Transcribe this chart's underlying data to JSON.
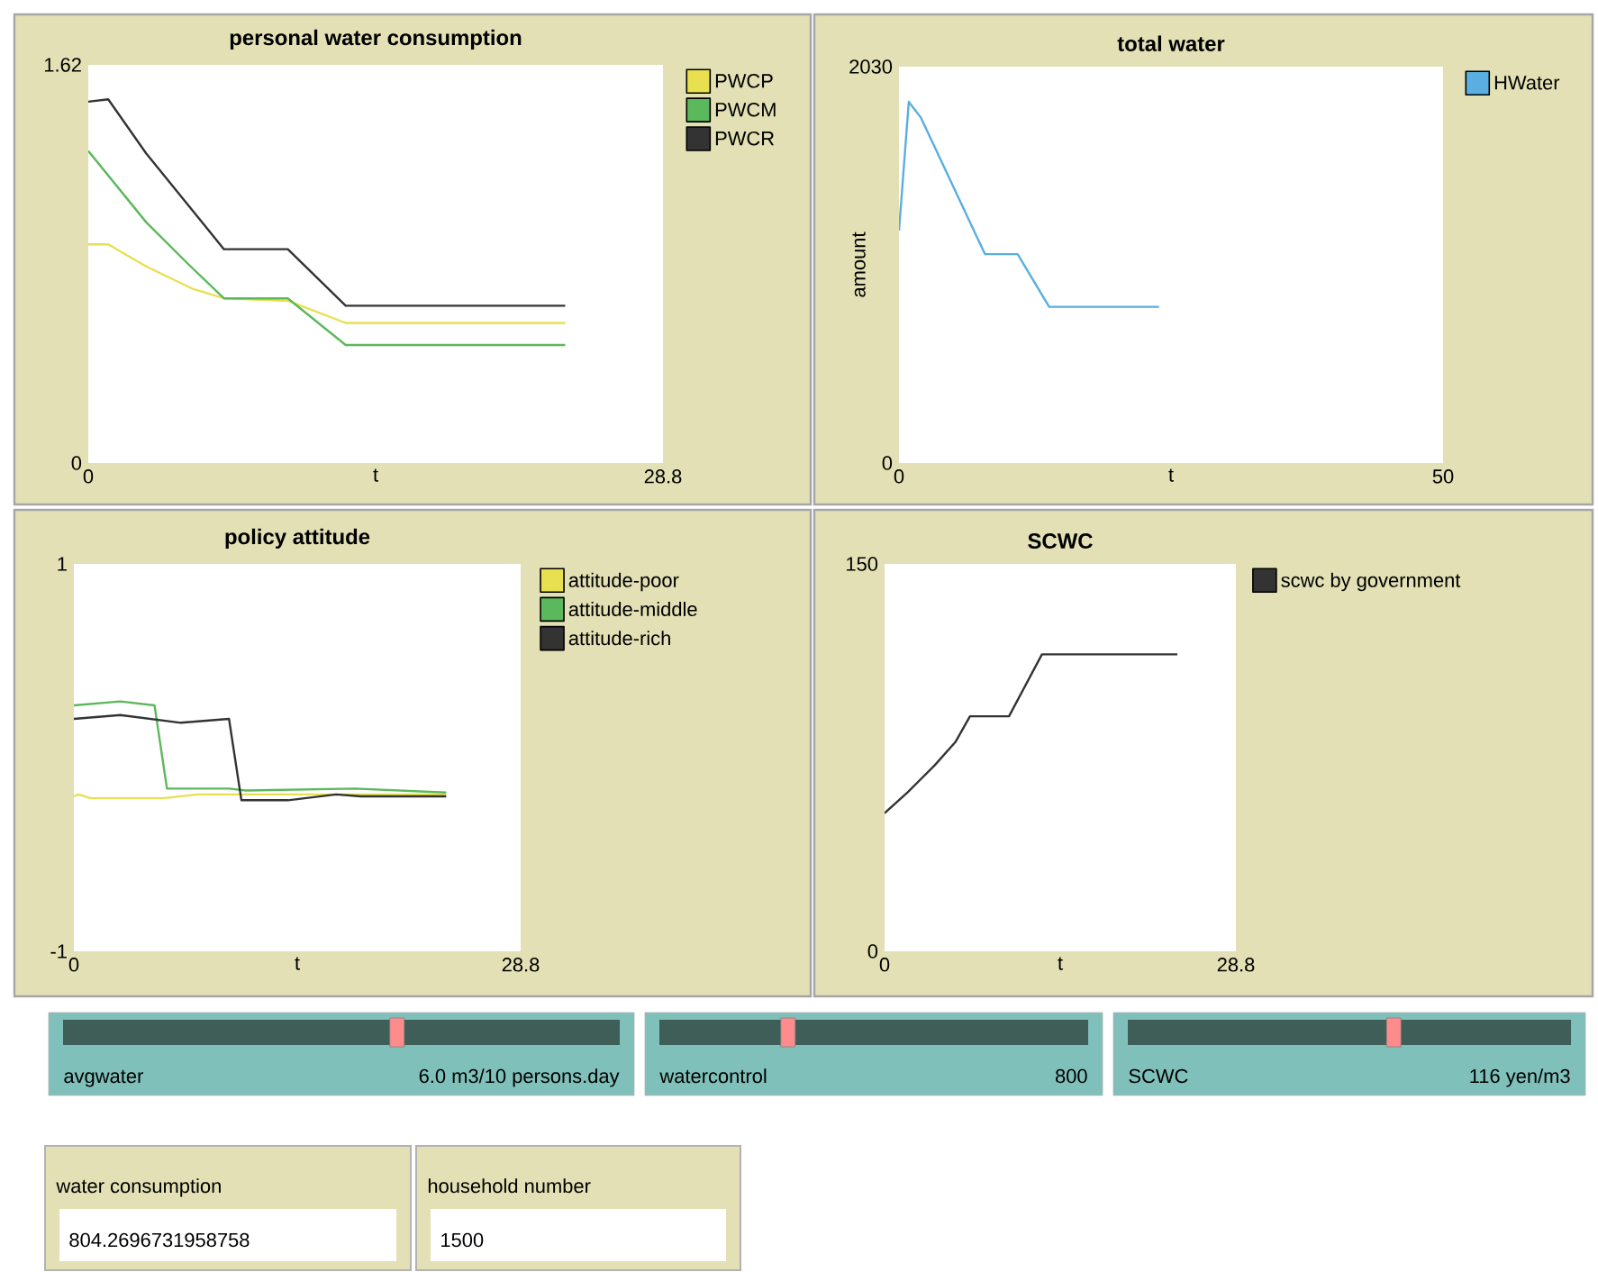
{
  "chart_data": [
    {
      "type": "line",
      "title": "personal water consumption",
      "xlabel": "t",
      "xlim": [
        0,
        28.8
      ],
      "ylim": [
        0,
        1.62
      ],
      "xticks": [
        0,
        28.8
      ],
      "yticks": [
        0,
        1.62
      ],
      "legend": "right",
      "series": [
        {
          "name": "PWCP",
          "color": "#e8e050",
          "x": [
            0,
            1.0,
            2.9,
            5.2,
            6.8,
            10.0,
            12.9,
            23.9
          ],
          "values": [
            0.89,
            0.89,
            0.8,
            0.71,
            0.67,
            0.66,
            0.57,
            0.57
          ]
        },
        {
          "name": "PWCM",
          "color": "#5cb85c",
          "x": [
            0,
            2.9,
            5.0,
            6.8,
            10.0,
            12.9,
            23.9
          ],
          "values": [
            1.27,
            0.98,
            0.81,
            0.67,
            0.67,
            0.48,
            0.48
          ]
        },
        {
          "name": "PWCR",
          "color": "#333333",
          "x": [
            0,
            1.0,
            2.9,
            6.8,
            10.0,
            12.9,
            23.9
          ],
          "values": [
            1.47,
            1.48,
            1.26,
            0.87,
            0.87,
            0.64,
            0.64
          ]
        }
      ]
    },
    {
      "type": "line",
      "title": "total water",
      "xlabel": "t",
      "ylabel": "amount",
      "xlim": [
        0,
        50
      ],
      "ylim": [
        0,
        2030
      ],
      "xticks": [
        0,
        50
      ],
      "yticks": [
        0,
        2030
      ],
      "legend": "right",
      "series": [
        {
          "name": "HWater",
          "color": "#5aaee0",
          "x": [
            0,
            0.9,
            2.0,
            7.9,
            10.9,
            13.8,
            23.9
          ],
          "values": [
            1190,
            1850,
            1770,
            1070,
            1070,
            800,
            800
          ]
        }
      ]
    },
    {
      "type": "line",
      "title": "policy attitude",
      "xlabel": "t",
      "xlim": [
        0,
        28.8
      ],
      "ylim": [
        -1,
        1
      ],
      "xticks": [
        0,
        28.8
      ],
      "yticks": [
        -1,
        1
      ],
      "legend": "right",
      "series": [
        {
          "name": "attitude-poor",
          "color": "#e8e050",
          "x": [
            0,
            0.3,
            1.1,
            5.7,
            8.0,
            24.0
          ],
          "values": [
            -0.2,
            -0.19,
            -0.21,
            -0.21,
            -0.19,
            -0.19
          ]
        },
        {
          "name": "attitude-middle",
          "color": "#5cb85c",
          "x": [
            0,
            3.0,
            5.2,
            6.0,
            10.0,
            11.1,
            18.1,
            24.0
          ],
          "values": [
            0.27,
            0.29,
            0.27,
            -0.16,
            -0.16,
            -0.17,
            -0.16,
            -0.18
          ]
        },
        {
          "name": "attitude-rich",
          "color": "#333333",
          "x": [
            0,
            3.0,
            6.9,
            10.0,
            10.8,
            13.8,
            16.9,
            18.5,
            24.0
          ],
          "values": [
            0.2,
            0.22,
            0.18,
            0.2,
            -0.22,
            -0.22,
            -0.19,
            -0.2,
            -0.2
          ]
        }
      ]
    },
    {
      "type": "line",
      "title": "SCWC",
      "xlabel": "t",
      "xlim": [
        0,
        28.8
      ],
      "ylim": [
        0,
        150
      ],
      "xticks": [
        0,
        28.8
      ],
      "yticks": [
        0,
        150
      ],
      "legend": "right",
      "series": [
        {
          "name": "scwc by government",
          "color": "#333333",
          "x": [
            0,
            1.9,
            4.1,
            5.8,
            7.0,
            10.2,
            12.9,
            24.0
          ],
          "values": [
            53.5,
            61.6,
            72,
            81,
            91,
            91,
            115,
            115
          ]
        }
      ]
    },
    {
      "type": "other",
      "annotations": [
        "avgwater",
        "6.0 m3/10 persons.day",
        "watercontrol",
        "800",
        "SCWC",
        "116 yen/m3",
        "water consumption",
        "804.2696731958758",
        "household number",
        "1500"
      ]
    }
  ]
}
